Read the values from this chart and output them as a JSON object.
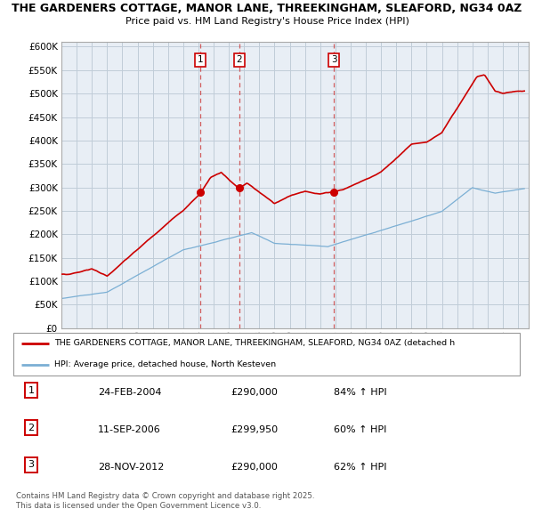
{
  "title": "THE GARDENERS COTTAGE, MANOR LANE, THREEKINGHAM, SLEAFORD, NG34 0AZ",
  "subtitle": "Price paid vs. HM Land Registry's House Price Index (HPI)",
  "red_label": "THE GARDENERS COTTAGE, MANOR LANE, THREEKINGHAM, SLEAFORD, NG34 0AZ (detached h",
  "blue_label": "HPI: Average price, detached house, North Kesteven",
  "footer": "Contains HM Land Registry data © Crown copyright and database right 2025.\nThis data is licensed under the Open Government Licence v3.0.",
  "sales": [
    {
      "num": 1,
      "date": "24-FEB-2004",
      "price": 290000,
      "hpi_pct": "84%",
      "direction": "↑"
    },
    {
      "num": 2,
      "date": "11-SEP-2006",
      "price": 299950,
      "hpi_pct": "60%",
      "direction": "↑"
    },
    {
      "num": 3,
      "date": "28-NOV-2012",
      "price": 290000,
      "hpi_pct": "62%",
      "direction": "↑"
    }
  ],
  "sale_years": [
    2004.14,
    2006.69,
    2012.91
  ],
  "sale_prices": [
    290000,
    299950,
    290000
  ],
  "red_color": "#cc0000",
  "blue_color": "#7bafd4",
  "vline_color": "#cc4444",
  "chart_bg": "#e8eef5",
  "background_color": "#ffffff",
  "grid_color": "#c0ccd8",
  "ylim": [
    0,
    600000
  ],
  "yticks": [
    0,
    50000,
    100000,
    150000,
    200000,
    250000,
    300000,
    350000,
    400000,
    450000,
    500000,
    550000,
    600000
  ]
}
